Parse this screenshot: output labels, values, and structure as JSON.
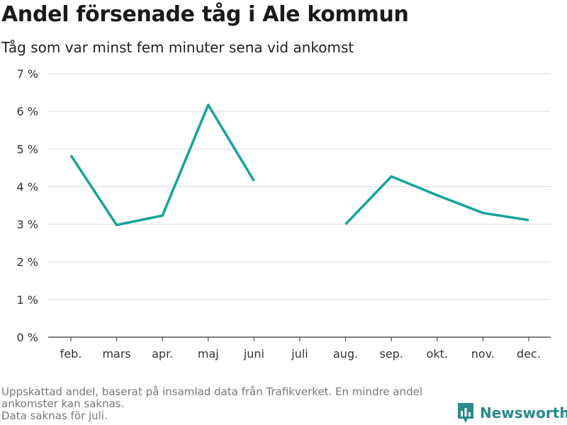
{
  "title": "Andel försenade tåg i Ale kommun",
  "subtitle": "Tåg som var minst fem minuter sena vid ankomst",
  "footnote": {
    "line1": "Uppskattad andel, baserat på insamlad data från Trafikverket. En mindre andel",
    "line2": "ankomster kan saknas.",
    "line3": "Data saknas för juli."
  },
  "brand": {
    "name": "Newsworthy",
    "color": "#2a8a8a",
    "icon": "bar-chart-speech-bubble-icon"
  },
  "chart_data": {
    "type": "line",
    "categories": [
      "feb.",
      "mars",
      "apr.",
      "maj",
      "juni",
      "juli",
      "aug.",
      "sep.",
      "okt.",
      "nov.",
      "dec."
    ],
    "series": [
      {
        "values": [
          4.83,
          2.98,
          3.23,
          6.17,
          4.15,
          null,
          3.0,
          4.27,
          3.77,
          3.3,
          3.11
        ],
        "color": "#15a39a"
      }
    ],
    "yticks": [
      0,
      1,
      2,
      3,
      4,
      5,
      6,
      7
    ],
    "ytick_suffix": " %",
    "ylim": [
      0,
      7
    ],
    "grid": true
  }
}
